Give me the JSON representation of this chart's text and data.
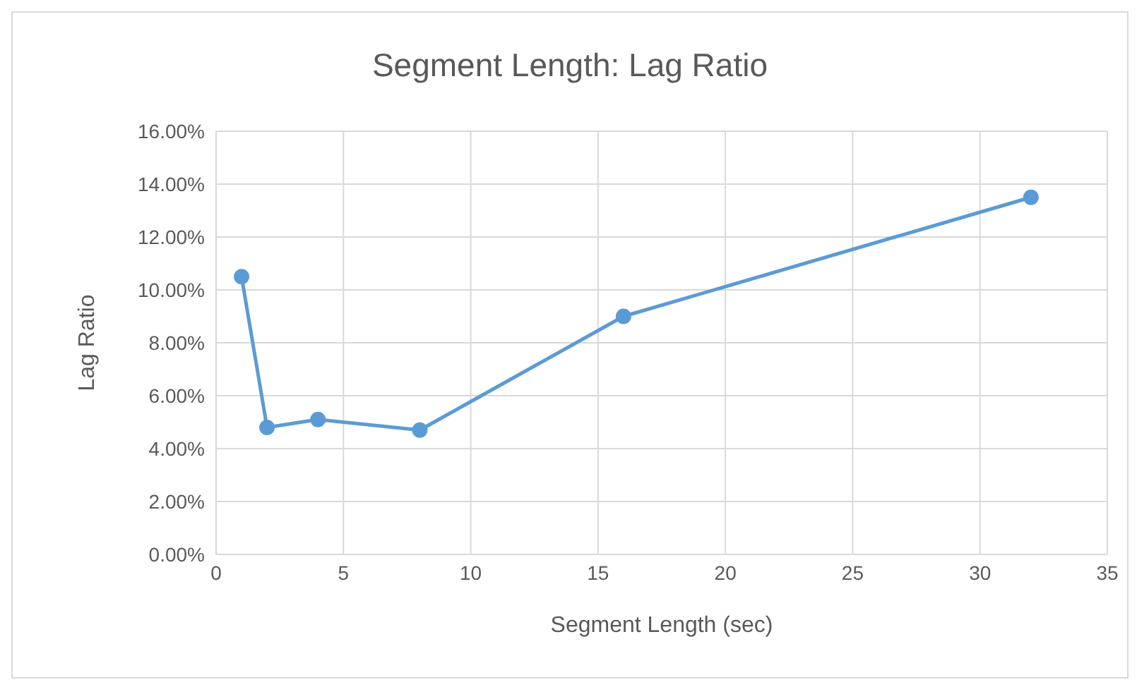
{
  "chart_data": {
    "type": "line",
    "title": "Segment Length: Lag Ratio",
    "xlabel": "Segment Length (sec)",
    "ylabel": "Lag Ratio",
    "x": [
      1,
      2,
      4,
      8,
      16,
      32
    ],
    "series": [
      {
        "color": "#5b9bd5",
        "values": [
          10.5,
          4.8,
          5.1,
          4.7,
          9.0,
          13.5
        ]
      }
    ],
    "xlim": [
      0,
      35
    ],
    "xticks": [
      0,
      5,
      10,
      15,
      20,
      25,
      30,
      35
    ],
    "ylim": [
      0,
      16
    ],
    "yticks": [
      {
        "value": 0,
        "label": "0.00%"
      },
      {
        "value": 2,
        "label": "2.00%"
      },
      {
        "value": 4,
        "label": "4.00%"
      },
      {
        "value": 6,
        "label": "6.00%"
      },
      {
        "value": 8,
        "label": "8.00%"
      },
      {
        "value": 10,
        "label": "10.00%"
      },
      {
        "value": 12,
        "label": "12.00%"
      },
      {
        "value": 14,
        "label": "14.00%"
      },
      {
        "value": 16,
        "label": "16.00%"
      }
    ],
    "grid": true,
    "marker": "circle",
    "line_style": "solid"
  }
}
